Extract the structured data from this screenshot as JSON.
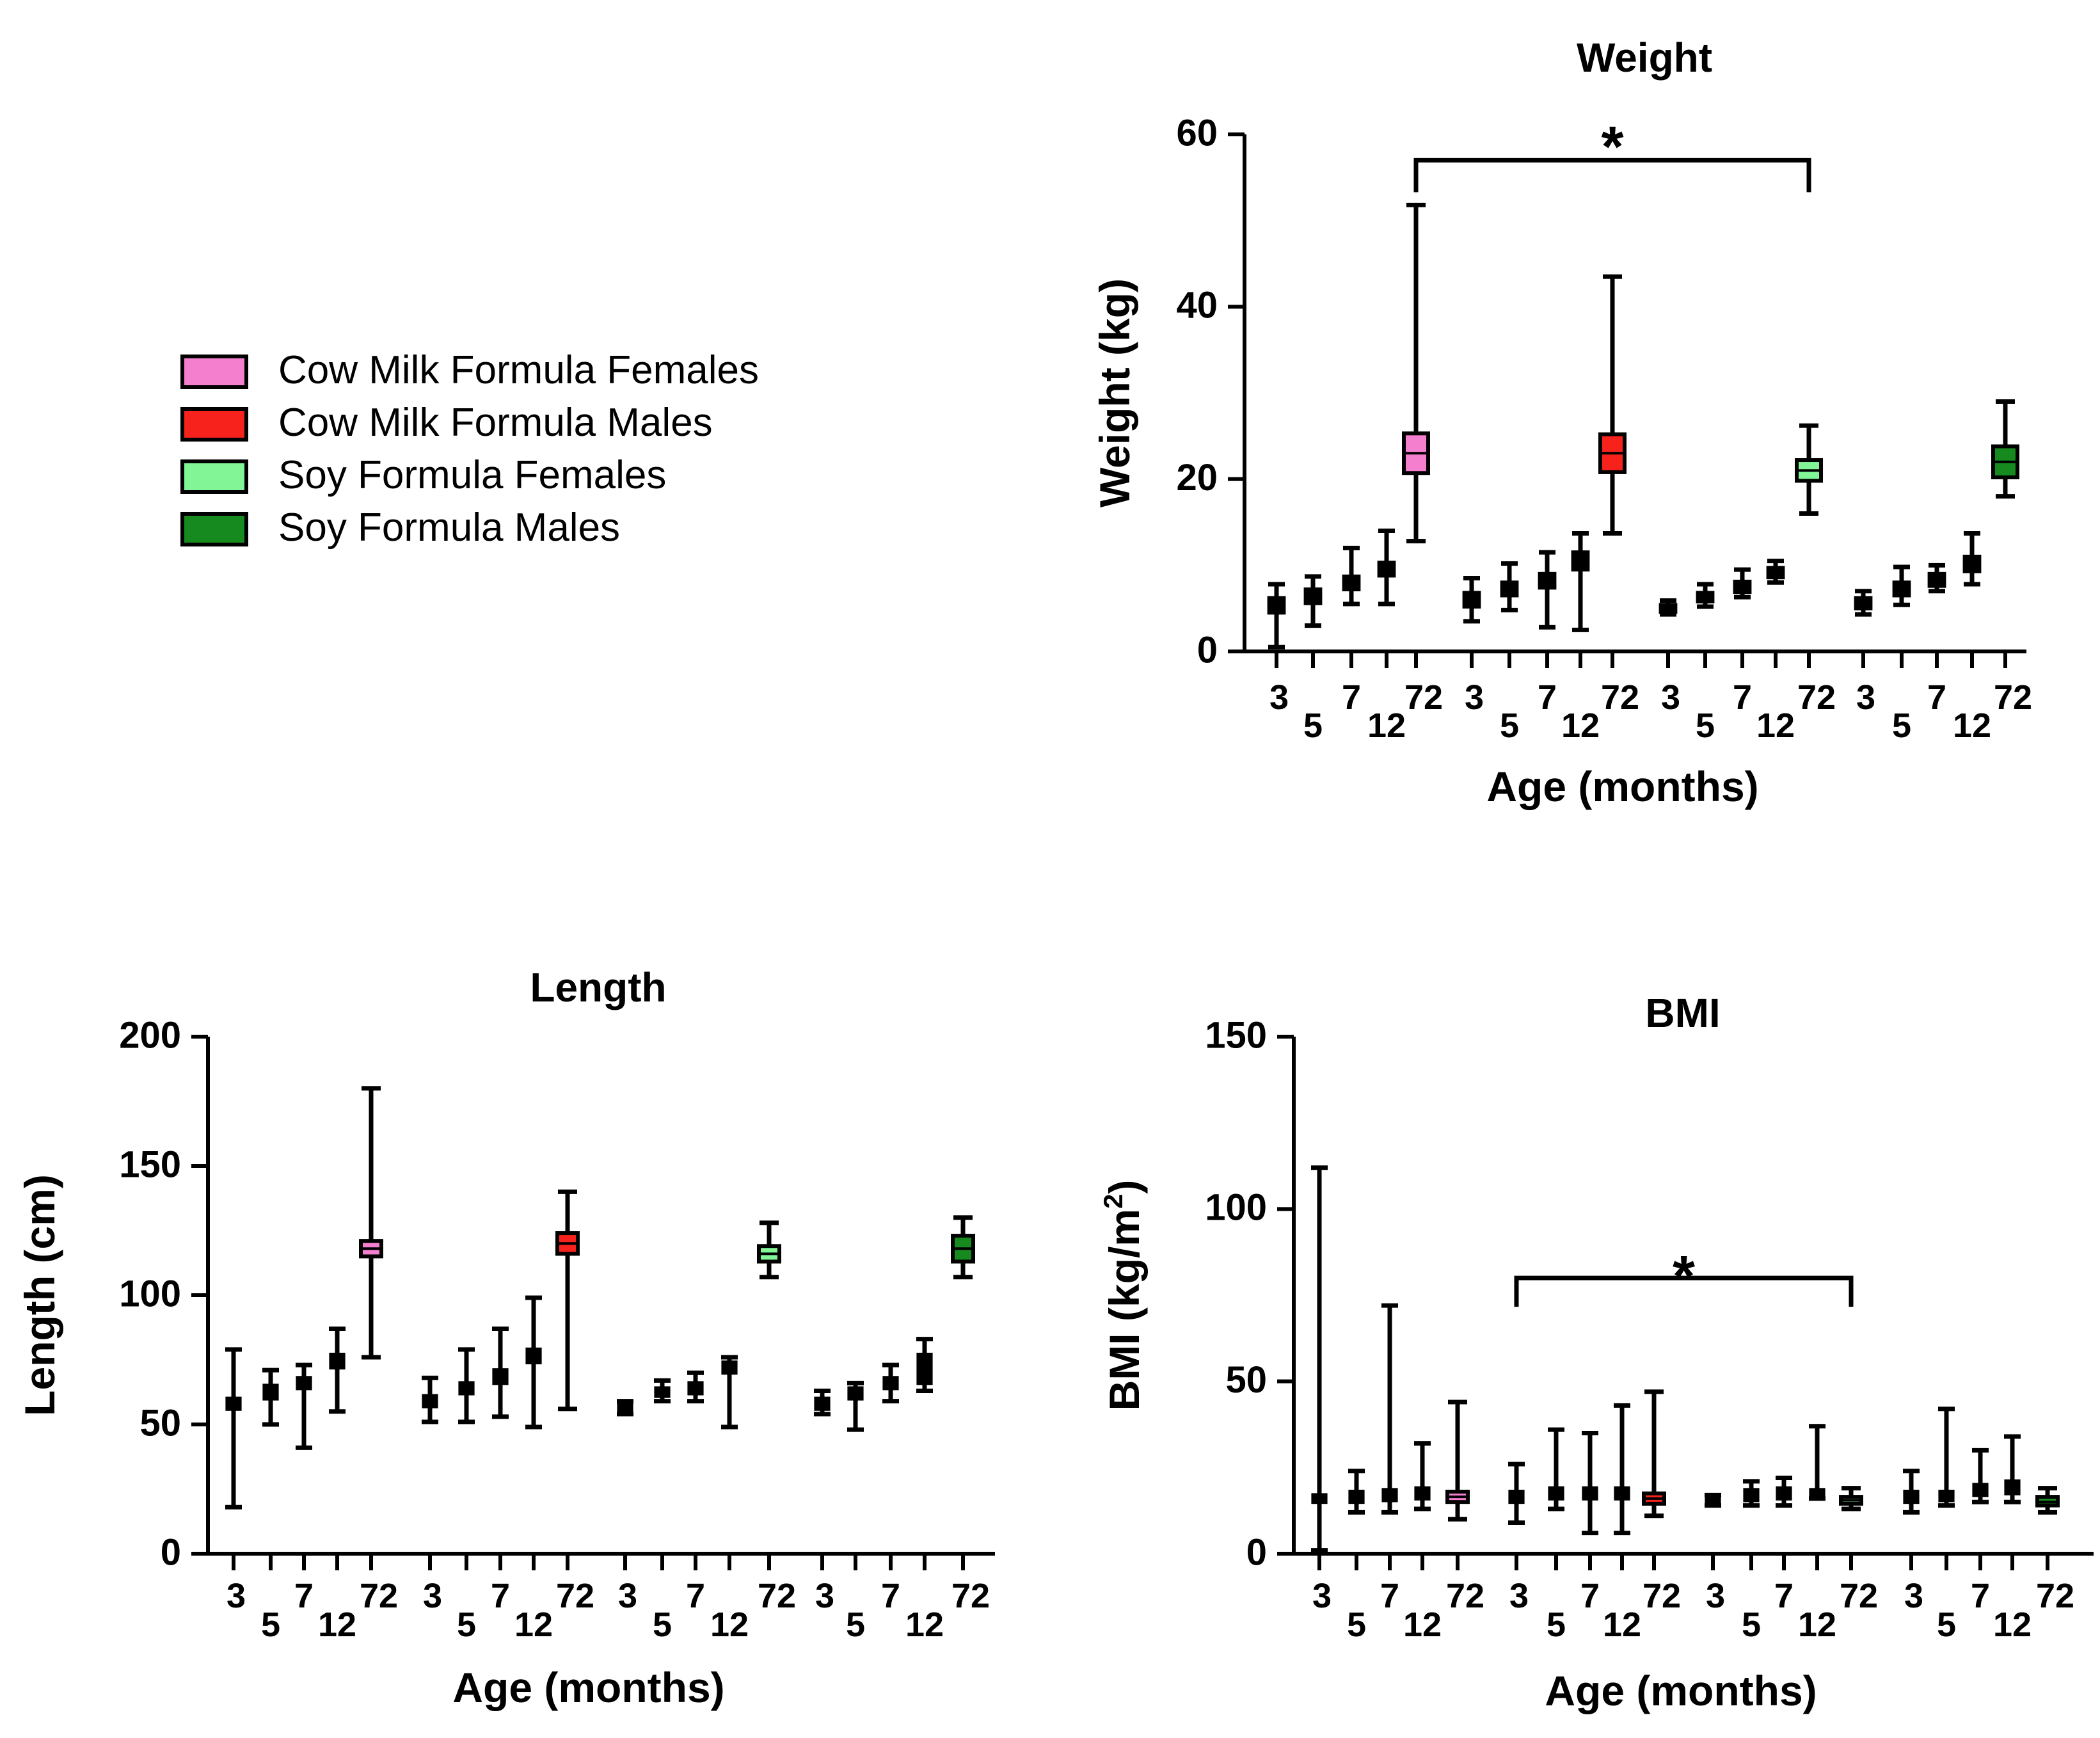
{
  "legend": {
    "items": [
      {
        "label": "Cow Milk Formula Females",
        "color": "#f47fcf"
      },
      {
        "label": "Cow Milk Formula Males",
        "color": "#f6221b"
      },
      {
        "label": "Soy Formula Females",
        "color": "#82f596"
      },
      {
        "label": "Soy Formula Males",
        "color": "#178a1f"
      }
    ]
  },
  "chart_data": [
    {
      "id": "weight",
      "type": "box",
      "title": "Weight",
      "xlabel": "Age (months)",
      "ylabel": "Weight (kg)",
      "ylabel_sup": "",
      "ylabel_tail": "",
      "ylim": [
        0,
        60
      ],
      "yticks": [
        0,
        20,
        40,
        60
      ],
      "categories": [
        "3",
        "5",
        "7",
        "12",
        "72"
      ],
      "groups": [
        {
          "name": "Cow Milk Formula Females",
          "color": "#f47fcf",
          "boxes": [
            {
              "age": "3",
              "min": 0.5,
              "q1": 4.5,
              "median": 5.5,
              "q3": 6.2,
              "max": 7.8
            },
            {
              "age": "5",
              "min": 3.0,
              "q1": 5.6,
              "median": 6.5,
              "q3": 7.2,
              "max": 8.7
            },
            {
              "age": "7",
              "min": 5.5,
              "q1": 7.2,
              "median": 8.0,
              "q3": 8.7,
              "max": 12.0
            },
            {
              "age": "12",
              "min": 5.5,
              "q1": 8.8,
              "median": 9.5,
              "q3": 10.3,
              "max": 14.0
            },
            {
              "age": "72",
              "min": 12.8,
              "q1": 20.7,
              "median": 23.0,
              "q3": 25.3,
              "max": 51.8
            }
          ]
        },
        {
          "name": "Cow Milk Formula Males",
          "color": "#f6221b",
          "boxes": [
            {
              "age": "3",
              "min": 3.5,
              "q1": 5.2,
              "median": 6.0,
              "q3": 6.8,
              "max": 8.5
            },
            {
              "age": "5",
              "min": 4.8,
              "q1": 6.5,
              "median": 7.3,
              "q3": 8.0,
              "max": 10.2
            },
            {
              "age": "7",
              "min": 2.8,
              "q1": 7.4,
              "median": 8.2,
              "q3": 9.0,
              "max": 11.5
            },
            {
              "age": "12",
              "min": 2.5,
              "q1": 9.5,
              "median": 10.5,
              "q3": 11.5,
              "max": 13.7
            },
            {
              "age": "72",
              "min": 13.7,
              "q1": 20.8,
              "median": 23.0,
              "q3": 25.2,
              "max": 43.5
            }
          ]
        },
        {
          "name": "Soy Formula Females",
          "color": "#82f596",
          "boxes": [
            {
              "age": "3",
              "min": 4.3,
              "q1": 4.6,
              "median": 5.0,
              "q3": 5.4,
              "max": 5.9
            },
            {
              "age": "5",
              "min": 5.2,
              "q1": 5.8,
              "median": 6.3,
              "q3": 6.8,
              "max": 7.8
            },
            {
              "age": "7",
              "min": 6.3,
              "q1": 6.9,
              "median": 7.5,
              "q3": 8.1,
              "max": 9.5
            },
            {
              "age": "12",
              "min": 8.0,
              "q1": 8.6,
              "median": 9.2,
              "q3": 9.7,
              "max": 10.5
            },
            {
              "age": "72",
              "min": 16.0,
              "q1": 19.8,
              "median": 21.0,
              "q3": 22.2,
              "max": 26.2
            }
          ]
        },
        {
          "name": "Soy Formula Males",
          "color": "#178a1f",
          "boxes": [
            {
              "age": "3",
              "min": 4.3,
              "q1": 5.0,
              "median": 5.6,
              "q3": 6.2,
              "max": 7.0
            },
            {
              "age": "5",
              "min": 5.4,
              "q1": 6.5,
              "median": 7.2,
              "q3": 8.0,
              "max": 9.8
            },
            {
              "age": "7",
              "min": 7.0,
              "q1": 7.6,
              "median": 8.3,
              "q3": 9.0,
              "max": 10.0
            },
            {
              "age": "12",
              "min": 7.8,
              "q1": 9.3,
              "median": 10.2,
              "q3": 11.0,
              "max": 13.7
            },
            {
              "age": "72",
              "min": 18.0,
              "q1": 20.2,
              "median": 22.0,
              "q3": 23.8,
              "max": 29.0
            }
          ]
        }
      ],
      "significance": {
        "label": "*",
        "from": {
          "group": 0,
          "age": "72"
        },
        "to": {
          "group": 2,
          "age": "72"
        },
        "y": 57
      }
    },
    {
      "id": "length",
      "type": "box",
      "title": "Length",
      "xlabel": "Age (months)",
      "ylabel": "Length (cm)",
      "ylabel_sup": "",
      "ylabel_tail": "",
      "ylim": [
        0,
        200
      ],
      "yticks": [
        0,
        50,
        100,
        150,
        200
      ],
      "categories": [
        "3",
        "5",
        "7",
        "12",
        "72"
      ],
      "groups": [
        {
          "name": "Cow Milk Formula Females",
          "color": "#f47fcf",
          "boxes": [
            {
              "age": "3",
              "min": 18,
              "q1": 56,
              "median": 58,
              "q3": 60,
              "max": 79
            },
            {
              "age": "5",
              "min": 50,
              "q1": 60,
              "median": 62,
              "q3": 65,
              "max": 71
            },
            {
              "age": "7",
              "min": 41,
              "q1": 64,
              "median": 66,
              "q3": 68,
              "max": 73
            },
            {
              "age": "12",
              "min": 55,
              "q1": 72,
              "median": 75,
              "q3": 77,
              "max": 87
            },
            {
              "age": "72",
              "min": 76,
              "q1": 115,
              "median": 118,
              "q3": 121,
              "max": 180
            }
          ]
        },
        {
          "name": "Cow Milk Formula Males",
          "color": "#f6221b",
          "boxes": [
            {
              "age": "3",
              "min": 51,
              "q1": 57,
              "median": 59,
              "q3": 61,
              "max": 68
            },
            {
              "age": "5",
              "min": 51,
              "q1": 62,
              "median": 64,
              "q3": 66,
              "max": 79
            },
            {
              "age": "7",
              "min": 53,
              "q1": 66,
              "median": 69,
              "q3": 71,
              "max": 87
            },
            {
              "age": "12",
              "min": 49,
              "q1": 74,
              "median": 77,
              "q3": 79,
              "max": 99
            },
            {
              "age": "72",
              "min": 56,
              "q1": 116,
              "median": 120,
              "q3": 124,
              "max": 140
            }
          ]
        },
        {
          "name": "Soy Formula Females",
          "color": "#82f596",
          "boxes": [
            {
              "age": "3",
              "min": 54,
              "q1": 55,
              "median": 56,
              "q3": 58,
              "max": 59
            },
            {
              "age": "5",
              "min": 59,
              "q1": 61,
              "median": 62,
              "q3": 64,
              "max": 67
            },
            {
              "age": "7",
              "min": 59,
              "q1": 62,
              "median": 64,
              "q3": 66,
              "max": 70
            },
            {
              "age": "12",
              "min": 49,
              "q1": 70,
              "median": 72,
              "q3": 74,
              "max": 76
            },
            {
              "age": "72",
              "min": 107,
              "q1": 113,
              "median": 116,
              "q3": 119,
              "max": 128
            }
          ]
        },
        {
          "name": "Soy Formula Males",
          "color": "#178a1f",
          "boxes": [
            {
              "age": "3",
              "min": 54,
              "q1": 56,
              "median": 58,
              "q3": 60,
              "max": 63
            },
            {
              "age": "5",
              "min": 48,
              "q1": 60,
              "median": 62,
              "q3": 64,
              "max": 66
            },
            {
              "age": "7",
              "min": 59,
              "q1": 64,
              "median": 66,
              "q3": 68,
              "max": 73
            },
            {
              "age": "12",
              "min": 63,
              "q1": 66,
              "median": 71,
              "q3": 77,
              "max": 83
            },
            {
              "age": "72",
              "min": 107,
              "q1": 113,
              "median": 118,
              "q3": 123,
              "max": 130
            }
          ]
        }
      ],
      "significance": null
    },
    {
      "id": "bmi",
      "type": "box",
      "title": "BMI",
      "xlabel": "Age (months)",
      "ylabel": "BMI (kg/m",
      "ylabel_sup": "2",
      "ylabel_tail": ")",
      "ylim": [
        0,
        150
      ],
      "yticks": [
        0,
        50,
        100,
        150
      ],
      "categories": [
        "3",
        "5",
        "7",
        "12",
        "72"
      ],
      "groups": [
        {
          "name": "Cow Milk Formula Females",
          "color": "#f47fcf",
          "boxes": [
            {
              "age": "3",
              "min": 1,
              "q1": 15,
              "median": 16,
              "q3": 17,
              "max": 112
            },
            {
              "age": "5",
              "min": 12,
              "q1": 15,
              "median": 16.5,
              "q3": 18,
              "max": 24
            },
            {
              "age": "7",
              "min": 12,
              "q1": 15.5,
              "median": 17,
              "q3": 18.5,
              "max": 72
            },
            {
              "age": "12",
              "min": 13,
              "q1": 16,
              "median": 17.5,
              "q3": 19,
              "max": 32
            },
            {
              "age": "72",
              "min": 10,
              "q1": 15,
              "median": 16.5,
              "q3": 18,
              "max": 44
            }
          ]
        },
        {
          "name": "Cow Milk Formula Males",
          "color": "#f6221b",
          "boxes": [
            {
              "age": "3",
              "min": 9,
              "q1": 15,
              "median": 16.5,
              "q3": 18,
              "max": 26
            },
            {
              "age": "5",
              "min": 13,
              "q1": 16,
              "median": 17.5,
              "q3": 19,
              "max": 36
            },
            {
              "age": "7",
              "min": 6,
              "q1": 16,
              "median": 17.5,
              "q3": 19,
              "max": 35
            },
            {
              "age": "12",
              "min": 6,
              "q1": 16,
              "median": 17.5,
              "q3": 19,
              "max": 43
            },
            {
              "age": "72",
              "min": 11,
              "q1": 14.5,
              "median": 16,
              "q3": 17.5,
              "max": 47
            }
          ]
        },
        {
          "name": "Soy Formula Females",
          "color": "#82f596",
          "boxes": [
            {
              "age": "3",
              "min": 14,
              "q1": 15,
              "median": 15.5,
              "q3": 16.5,
              "max": 17
            },
            {
              "age": "5",
              "min": 14,
              "q1": 15.5,
              "median": 17,
              "q3": 18.5,
              "max": 21
            },
            {
              "age": "7",
              "min": 14,
              "q1": 16,
              "median": 17.5,
              "q3": 19,
              "max": 22
            },
            {
              "age": "12",
              "min": 16,
              "q1": 17,
              "median": 17.5,
              "q3": 18.5,
              "max": 37
            },
            {
              "age": "72",
              "min": 13,
              "q1": 14.5,
              "median": 15.5,
              "q3": 16.5,
              "max": 19
            }
          ]
        },
        {
          "name": "Soy Formula Males",
          "color": "#178a1f",
          "boxes": [
            {
              "age": "3",
              "min": 12,
              "q1": 15,
              "median": 16.5,
              "q3": 18,
              "max": 24
            },
            {
              "age": "5",
              "min": 14,
              "q1": 15.5,
              "median": 16.5,
              "q3": 18,
              "max": 42
            },
            {
              "age": "7",
              "min": 15,
              "q1": 17,
              "median": 18.5,
              "q3": 20,
              "max": 30
            },
            {
              "age": "12",
              "min": 15,
              "q1": 17.5,
              "median": 19,
              "q3": 21,
              "max": 34
            },
            {
              "age": "72",
              "min": 12,
              "q1": 14,
              "median": 15,
              "q3": 16.5,
              "max": 19
            }
          ]
        }
      ],
      "significance": {
        "label": "*",
        "from": {
          "group": 1,
          "age": "3"
        },
        "to": {
          "group": 2,
          "age": "72"
        },
        "y": 80
      }
    }
  ]
}
